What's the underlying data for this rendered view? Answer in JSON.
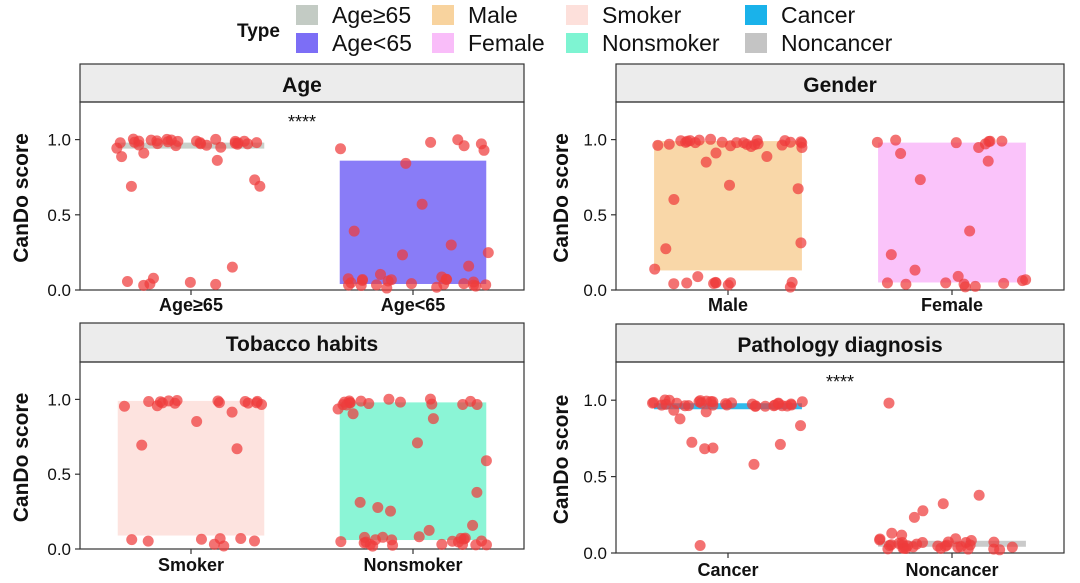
{
  "legend": {
    "title": "Type",
    "items": [
      {
        "label": "Age≥65",
        "color": "#c3cbc4"
      },
      {
        "label": "Male",
        "color": "#f8d39e"
      },
      {
        "label": "Smoker",
        "color": "#fde0db"
      },
      {
        "label": "Cancer",
        "color": "#1ab2ea"
      },
      {
        "label": "Age<65",
        "color": "#7c6ef6"
      },
      {
        "label": "Female",
        "color": "#f9bdf9"
      },
      {
        "label": "Nonsmoker",
        "color": "#7ef4d2"
      },
      {
        "label": "Noncancer",
        "color": "#c4c4c4"
      }
    ]
  },
  "point_color": "#ef3b3b",
  "chart_data": [
    {
      "type": "box",
      "title": "Age",
      "ylabel": "CanDo score",
      "ylim": [
        0,
        1.25
      ],
      "yticks": [
        "0.0",
        "0.5",
        "1.0"
      ],
      "significance": "****",
      "categories": [
        "Age≥65",
        "Age<65"
      ],
      "boxes": [
        {
          "category": "Age≥65",
          "q1": 0.94,
          "q3": 0.98,
          "color": "#c3cbc4"
        },
        {
          "category": "Age<65",
          "q1": 0.04,
          "q3": 0.86,
          "color": "#7c6ef6"
        }
      ],
      "points": [
        [
          0.98,
          0.99,
          0.97,
          0.99,
          0.98,
          0.96,
          0.99,
          0.97,
          0.98,
          0.99,
          0.97,
          0.98,
          0.95,
          0.99,
          0.93,
          0.99,
          0.97,
          0.98,
          0.96,
          0.99,
          0.97,
          0.98,
          0.99,
          0.96,
          0.92,
          0.99,
          0.97,
          0.98,
          0.88,
          0.85,
          0.72,
          0.69,
          0.68,
          0.14,
          0.07,
          0.05,
          0.06,
          0.04,
          0.05,
          0.03
        ],
        [
          0.99,
          0.98,
          0.97,
          0.96,
          0.93,
          0.92,
          0.85,
          0.58,
          0.38,
          0.31,
          0.26,
          0.24,
          0.15,
          0.11,
          0.09,
          0.08,
          0.07,
          0.07,
          0.06,
          0.06,
          0.05,
          0.05,
          0.05,
          0.04,
          0.04,
          0.04,
          0.04,
          0.03,
          0.03,
          0.03,
          0.03,
          0.02,
          0.02,
          0.06,
          0.08
        ]
      ]
    },
    {
      "type": "box",
      "title": "Gender",
      "ylabel": "CanDo score",
      "ylim": [
        0,
        1.25
      ],
      "yticks": [
        "0.0",
        "0.5",
        "1.0"
      ],
      "significance": "",
      "categories": [
        "Male",
        "Female"
      ],
      "boxes": [
        {
          "category": "Male",
          "q1": 0.13,
          "q3": 0.99,
          "color": "#f8d39e"
        },
        {
          "category": "Female",
          "q1": 0.05,
          "q3": 0.98,
          "color": "#f9bdf9"
        }
      ],
      "points": [
        [
          0.99,
          0.98,
          0.99,
          0.97,
          0.98,
          0.99,
          0.96,
          0.98,
          0.99,
          0.97,
          0.98,
          0.99,
          0.97,
          0.98,
          0.96,
          0.99,
          0.98,
          0.97,
          0.99,
          0.98,
          0.96,
          0.97,
          0.99,
          0.98,
          0.92,
          0.88,
          0.85,
          0.69,
          0.68,
          0.59,
          0.31,
          0.27,
          0.14,
          0.08,
          0.06,
          0.05,
          0.05,
          0.04,
          0.04,
          0.03,
          0.05,
          0.06,
          0.04
        ],
        [
          0.99,
          0.98,
          0.99,
          0.97,
          0.98,
          0.99,
          0.97,
          0.96,
          0.92,
          0.85,
          0.73,
          0.38,
          0.24,
          0.12,
          0.09,
          0.07,
          0.06,
          0.05,
          0.04,
          0.04,
          0.03,
          0.03,
          0.05,
          0.02
        ]
      ]
    },
    {
      "type": "box",
      "title": "Tobacco habits",
      "ylabel": "CanDo score",
      "ylim": [
        0,
        1.25
      ],
      "yticks": [
        "0.0",
        "0.5",
        "1.0"
      ],
      "significance": "",
      "categories": [
        "Smoker",
        "Nonsmoker"
      ],
      "boxes": [
        {
          "category": "Smoker",
          "q1": 0.09,
          "q3": 0.99,
          "color": "#fde0db"
        },
        {
          "category": "Nonsmoker",
          "q1": 0.06,
          "q3": 0.98,
          "color": "#7ef4d2"
        }
      ],
      "points": [
        [
          0.99,
          0.98,
          0.99,
          0.97,
          0.98,
          0.99,
          0.97,
          0.98,
          0.96,
          0.99,
          0.98,
          0.97,
          0.99,
          0.96,
          0.98,
          0.92,
          0.86,
          0.69,
          0.68,
          0.08,
          0.07,
          0.06,
          0.05,
          0.05,
          0.04,
          0.03,
          0.06
        ],
        [
          0.99,
          0.98,
          0.99,
          0.97,
          0.98,
          0.99,
          0.96,
          0.98,
          0.97,
          0.99,
          0.98,
          0.96,
          0.99,
          0.97,
          0.98,
          0.93,
          0.91,
          0.86,
          0.72,
          0.58,
          0.38,
          0.31,
          0.27,
          0.24,
          0.15,
          0.12,
          0.09,
          0.08,
          0.07,
          0.07,
          0.06,
          0.06,
          0.05,
          0.05,
          0.05,
          0.04,
          0.04,
          0.04,
          0.03,
          0.03,
          0.03,
          0.02,
          0.02,
          0.06,
          0.08,
          0.05,
          0.04
        ]
      ]
    },
    {
      "type": "box",
      "title": "Pathology diagnosis",
      "ylabel": "CanDo score",
      "ylim": [
        0,
        1.25
      ],
      "yticks": [
        "0.0",
        "0.5",
        "1.0"
      ],
      "significance": "****",
      "categories": [
        "Cancer",
        "Noncancer"
      ],
      "boxes": [
        {
          "category": "Cancer",
          "q1": 0.96,
          "q3": 0.98,
          "color": "#1ab2ea"
        },
        {
          "category": "Noncancer",
          "q1": 0.05,
          "q3": 0.08,
          "color": "#c4c4c4"
        }
      ],
      "points": [
        [
          0.99,
          0.98,
          0.99,
          0.97,
          0.98,
          0.99,
          0.97,
          0.98,
          0.96,
          0.99,
          0.98,
          0.97,
          0.99,
          0.96,
          0.98,
          0.99,
          0.97,
          0.98,
          0.99,
          0.96,
          0.98,
          0.97,
          0.99,
          0.98,
          0.97,
          0.96,
          0.99,
          0.98,
          0.97,
          0.99,
          0.96,
          0.98,
          0.93,
          0.92,
          0.88,
          0.84,
          0.73,
          0.71,
          0.69,
          0.68,
          0.58,
          0.06
        ],
        [
          0.98,
          0.38,
          0.31,
          0.27,
          0.24,
          0.14,
          0.12,
          0.09,
          0.08,
          0.08,
          0.07,
          0.07,
          0.06,
          0.06,
          0.05,
          0.05,
          0.05,
          0.04,
          0.04,
          0.04,
          0.03,
          0.03,
          0.03,
          0.02,
          0.02,
          0.06,
          0.05,
          0.04,
          0.07,
          0.03,
          0.05,
          0.06,
          0.04,
          0.03,
          0.08,
          0.02,
          0.05,
          0.04
        ]
      ]
    }
  ]
}
